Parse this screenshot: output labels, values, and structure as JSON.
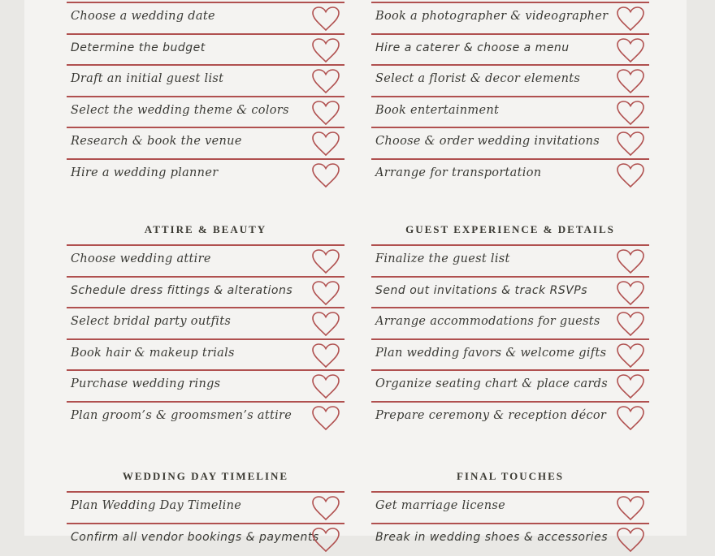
{
  "sections": [
    {
      "title": "",
      "items": [
        {
          "label": "Choose a wedding date",
          "style": "serif"
        },
        {
          "label": "Determine the budget",
          "style": "sans"
        },
        {
          "label": "Draft an initial guest list",
          "style": "serif"
        },
        {
          "label": "Select the wedding theme & colors",
          "style": "serif"
        },
        {
          "label": "Research & book the venue",
          "style": "serif"
        },
        {
          "label": "Hire a wedding planner",
          "style": "serif"
        }
      ]
    },
    {
      "title": "",
      "items": [
        {
          "label": "Book a photographer & videographer",
          "style": "serif"
        },
        {
          "label": "Hire a caterer & choose a menu",
          "style": "sans"
        },
        {
          "label": "Select a florist & decor elements",
          "style": "serif"
        },
        {
          "label": "Book entertainment",
          "style": "serif"
        },
        {
          "label": "Choose & order wedding invitations",
          "style": "serif"
        },
        {
          "label": "Arrange for transportation",
          "style": "serif"
        }
      ]
    },
    {
      "title": "ATTIRE & BEAUTY",
      "items": [
        {
          "label": "Choose wedding attire",
          "style": "serif"
        },
        {
          "label": "Schedule dress fittings & alterations",
          "style": "sans"
        },
        {
          "label": "Select bridal party outfits",
          "style": "serif"
        },
        {
          "label": "Book hair & makeup trials",
          "style": "serif"
        },
        {
          "label": "Purchase wedding rings",
          "style": "serif"
        },
        {
          "label": "Plan groom’s & groomsmen’s attire",
          "style": "serif"
        }
      ]
    },
    {
      "title": "GUEST EXPERIENCE & DETAILS",
      "items": [
        {
          "label": "Finalize the guest list",
          "style": "serif"
        },
        {
          "label": "Send out invitations & track RSVPs",
          "style": "sans"
        },
        {
          "label": "Arrange accommodations for guests",
          "style": "serif"
        },
        {
          "label": "Plan wedding favors & welcome gifts",
          "style": "serif"
        },
        {
          "label": "Organize seating chart & place cards",
          "style": "serif"
        },
        {
          "label": "Prepare ceremony & reception décor",
          "style": "serif"
        }
      ]
    },
    {
      "title": "WEDDING DAY TIMELINE",
      "items": [
        {
          "label": "Plan Wedding Day Timeline",
          "style": "serif"
        },
        {
          "label": "Confirm all vendor bookings & payments",
          "style": "sans"
        }
      ]
    },
    {
      "title": "FINAL TOUCHES",
      "items": [
        {
          "label": "Get marriage license",
          "style": "serif"
        },
        {
          "label": "Break in wedding shoes & accessories",
          "style": "sans"
        }
      ]
    }
  ],
  "colors": {
    "accent": "#b0504f",
    "text": "#3a3a35"
  },
  "icons": {
    "checkbox": "heart-outline-icon"
  }
}
